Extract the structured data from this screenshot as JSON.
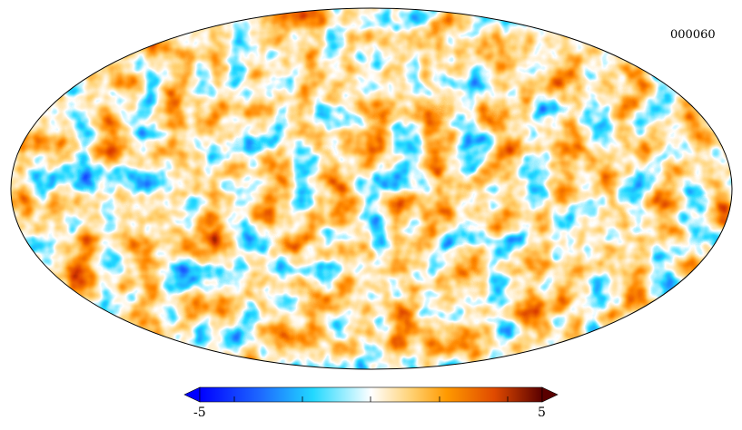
{
  "map": {
    "label": "000060",
    "projection": "mollweide",
    "colormap": [
      "#0000ff",
      "#1e6bff",
      "#21d8ff",
      "#ffffff",
      "#ffd070",
      "#ff8a00",
      "#d83a00",
      "#5a0000"
    ],
    "outline_color": "#000000"
  },
  "colorbar": {
    "min_label": "-5",
    "max_label": "5",
    "min": -5,
    "max": 5
  }
}
